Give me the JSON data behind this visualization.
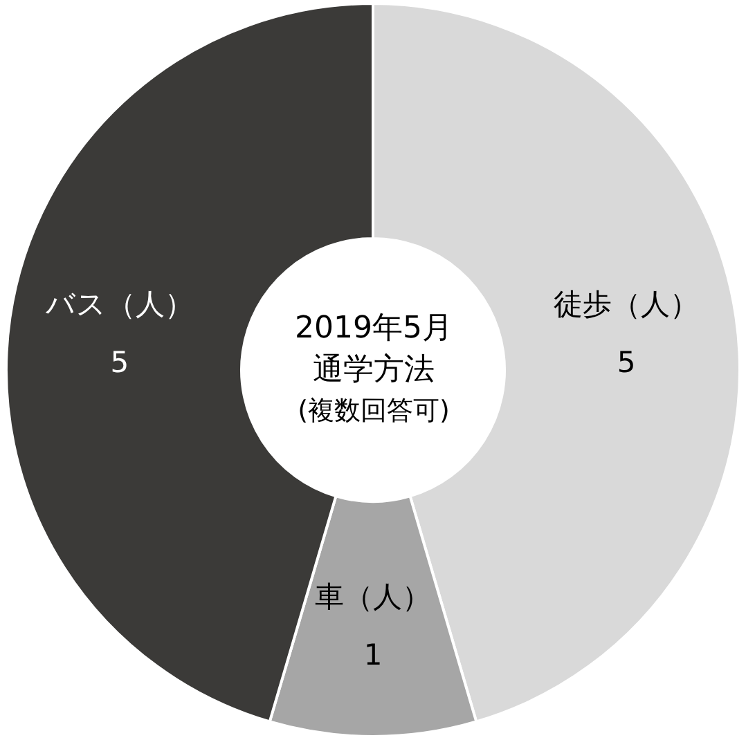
{
  "chart_data": {
    "type": "donut",
    "title": "2019年5月",
    "subtitle": "通学方法",
    "annotations": [
      "(複数回答可)"
    ],
    "categories": [
      "徒歩（人）",
      "車（人）",
      "バス（人）"
    ],
    "values": [
      5,
      1,
      5
    ],
    "colors": [
      "#d9d9d9",
      "#a6a6a6",
      "#3b3a38"
    ],
    "data_labels": true
  }
}
